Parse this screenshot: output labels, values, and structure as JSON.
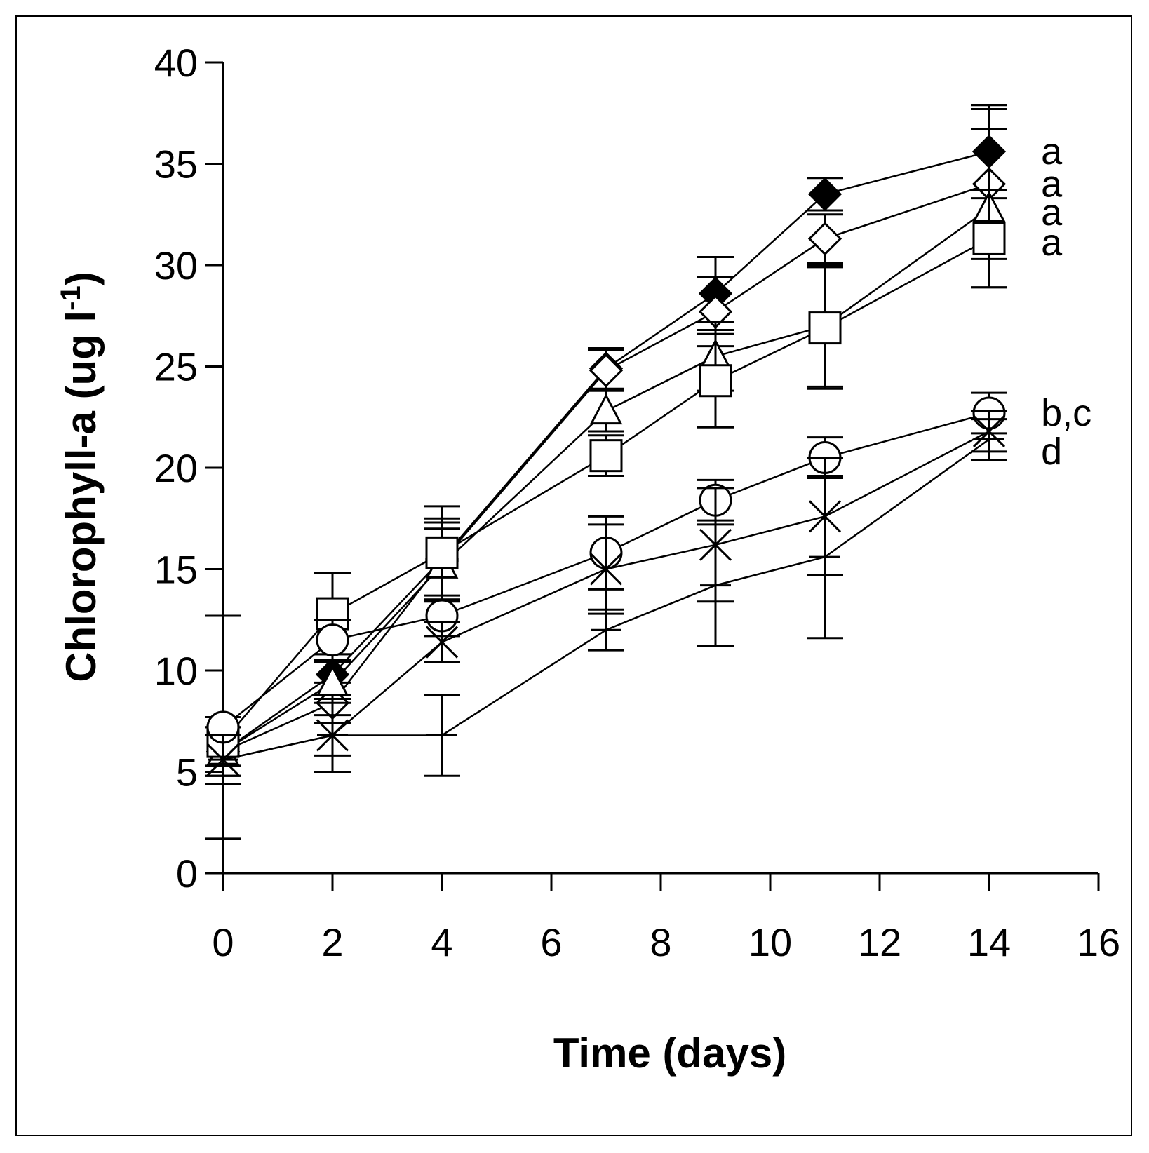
{
  "chart_data": {
    "type": "line",
    "xlabel": "Time (days)",
    "ylabel_main": "Chlorophyll-a (ug l",
    "ylabel_sup": "-1",
    "ylabel_close": ")",
    "xlim": [
      0,
      16
    ],
    "ylim": [
      0,
      40
    ],
    "xticks": [
      0,
      2,
      4,
      6,
      8,
      10,
      12,
      14,
      16
    ],
    "yticks": [
      0,
      5,
      10,
      15,
      20,
      25,
      30,
      35,
      40
    ],
    "grid": false,
    "x": [
      0,
      2,
      4,
      7,
      9,
      11,
      14
    ],
    "series": [
      {
        "marker": "filled-diamond",
        "values": [
          6.0,
          9.8,
          15.5,
          24.9,
          28.6,
          33.5,
          35.6
        ],
        "err": [
          1.2,
          1.0,
          2.0,
          1.0,
          1.8,
          0.8,
          2.3
        ]
      },
      {
        "marker": "open-diamond",
        "values": [
          6.0,
          8.4,
          15.4,
          24.8,
          27.7,
          31.3,
          34.0
        ],
        "err": [
          1.2,
          1.0,
          1.9,
          1.0,
          1.7,
          1.2,
          3.7
        ]
      },
      {
        "marker": "open-triangle",
        "values": [
          6.0,
          9.4,
          15.2,
          22.8,
          25.5,
          27.0,
          32.8
        ],
        "err": [
          1.2,
          1.0,
          1.8,
          1.0,
          1.7,
          3.0,
          3.9
        ]
      },
      {
        "marker": "open-square",
        "values": [
          6.5,
          12.8,
          15.8,
          20.6,
          24.3,
          26.9,
          31.3
        ],
        "err": [
          1.2,
          2.0,
          2.3,
          1.0,
          2.3,
          3.0,
          2.4
        ]
      },
      {
        "marker": "open-circle",
        "values": [
          7.2,
          11.5,
          12.7,
          15.8,
          18.4,
          20.5,
          22.7
        ],
        "err": [
          5.5,
          1.0,
          1.0,
          1.8,
          1.0,
          1.0,
          1.0
        ]
      },
      {
        "marker": "cross",
        "values": [
          5.6,
          6.8,
          11.4,
          15.0,
          16.2,
          17.6,
          21.8
        ],
        "err": [
          1.2,
          1.0,
          1.0,
          2.2,
          2.8,
          2.9,
          1.0
        ]
      },
      {
        "marker": "plus-dash",
        "values": [
          5.6,
          6.8,
          6.8,
          12.0,
          14.2,
          15.6,
          21.4
        ],
        "err": [
          1.2,
          1.8,
          2.0,
          1.0,
          3.0,
          4.0,
          1.0
        ]
      }
    ],
    "annotations": [
      {
        "text": "a",
        "x": 14.95,
        "y": 35.6
      },
      {
        "text": "a",
        "x": 14.95,
        "y": 34.0
      },
      {
        "text": "a",
        "x": 14.95,
        "y": 32.6
      },
      {
        "text": "a",
        "x": 14.95,
        "y": 31.1
      },
      {
        "text": "b,c",
        "x": 14.95,
        "y": 22.7
      },
      {
        "text": "d",
        "x": 14.95,
        "y": 20.8
      }
    ]
  }
}
